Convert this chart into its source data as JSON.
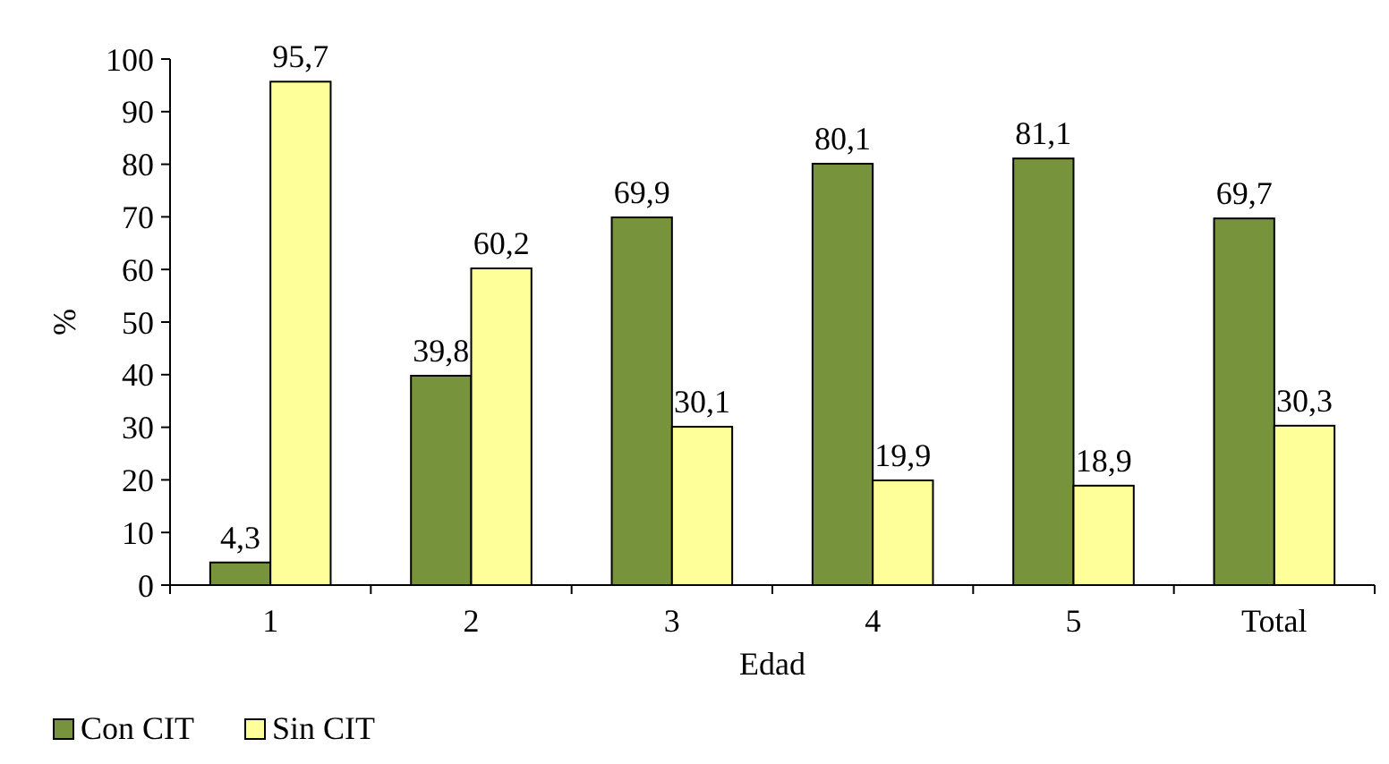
{
  "chart_data": {
    "type": "bar",
    "xlabel": "Edad",
    "ylabel": "%",
    "categories": [
      "1",
      "2",
      "3",
      "4",
      "5",
      "Total"
    ],
    "series": [
      {
        "name": "Con CIT",
        "color": "#77933c",
        "values": [
          4.3,
          39.8,
          69.9,
          80.1,
          81.1,
          69.7
        ],
        "value_labels": [
          "4,3",
          "39,8",
          "69,9",
          "80,1",
          "81,1",
          "69,7"
        ]
      },
      {
        "name": "Sin CIT",
        "color": "#ffff99",
        "values": [
          95.7,
          60.2,
          30.1,
          19.9,
          18.9,
          30.3
        ],
        "value_labels": [
          "95,7",
          "60,2",
          "30,1",
          "19,9",
          "18,9",
          "30,3"
        ]
      }
    ],
    "ylim": [
      0,
      100
    ],
    "yticks": [
      0,
      10,
      20,
      30,
      40,
      50,
      60,
      70,
      80,
      90,
      100
    ],
    "grid": false,
    "legend": "bottom left"
  }
}
